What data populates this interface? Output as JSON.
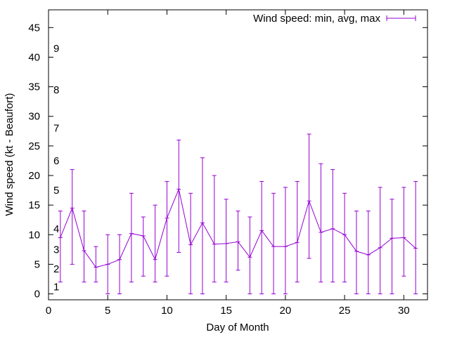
{
  "chart_data": {
    "type": "line",
    "title": "",
    "xlabel": "Day of Month",
    "ylabel": "Wind speed (kt - Beaufort)",
    "xlim": [
      0,
      32
    ],
    "ylim": [
      -1,
      48
    ],
    "xticks": [
      0,
      5,
      10,
      15,
      20,
      25,
      30
    ],
    "yticks": [
      0,
      5,
      10,
      15,
      20,
      25,
      30,
      35,
      40,
      45
    ],
    "grid": false,
    "legend_position": "top-right",
    "series": [
      {
        "name": "Wind speed: min, avg, max",
        "color": "#9400d3",
        "x": [
          1,
          2,
          3,
          4,
          5,
          6,
          7,
          8,
          9,
          10,
          11,
          12,
          13,
          14,
          15,
          16,
          17,
          18,
          19,
          20,
          21,
          22,
          23,
          24,
          25,
          26,
          27,
          28,
          29,
          30,
          31
        ],
        "avg": [
          9.5,
          14.5,
          7.3,
          4.5,
          5.0,
          5.8,
          10.2,
          9.8,
          5.8,
          12.8,
          17.7,
          8.3,
          12.0,
          8.4,
          8.5,
          8.8,
          6.2,
          10.7,
          8.0,
          8.0,
          8.7,
          15.7,
          10.4,
          11.0,
          10.0,
          7.2,
          6.6,
          7.8,
          9.4,
          9.5,
          7.7
        ],
        "min": [
          2,
          5,
          2,
          2,
          0,
          0,
          2,
          3,
          2,
          3,
          7,
          0,
          0,
          2,
          2,
          4,
          0,
          0,
          0,
          0,
          2,
          6,
          2,
          2,
          2,
          0,
          0,
          0,
          0,
          3,
          0
        ],
        "max": [
          14,
          21,
          14,
          8,
          10,
          10,
          17,
          13,
          15,
          19,
          26,
          17,
          23,
          20,
          16,
          14,
          13,
          19,
          17,
          18,
          19,
          27,
          22,
          21,
          17,
          14,
          14,
          18,
          16,
          18,
          19
        ]
      }
    ],
    "annotations": [
      {
        "text": "1",
        "y": 1.2
      },
      {
        "text": "2",
        "y": 4.2
      },
      {
        "text": "3",
        "y": 7.5
      },
      {
        "text": "4",
        "y": 11.0
      },
      {
        "text": "5",
        "y": 17.5
      },
      {
        "text": "6",
        "y": 22.5
      },
      {
        "text": "7",
        "y": 28.0
      },
      {
        "text": "8",
        "y": 34.5
      },
      {
        "text": "9",
        "y": 41.5
      }
    ]
  }
}
